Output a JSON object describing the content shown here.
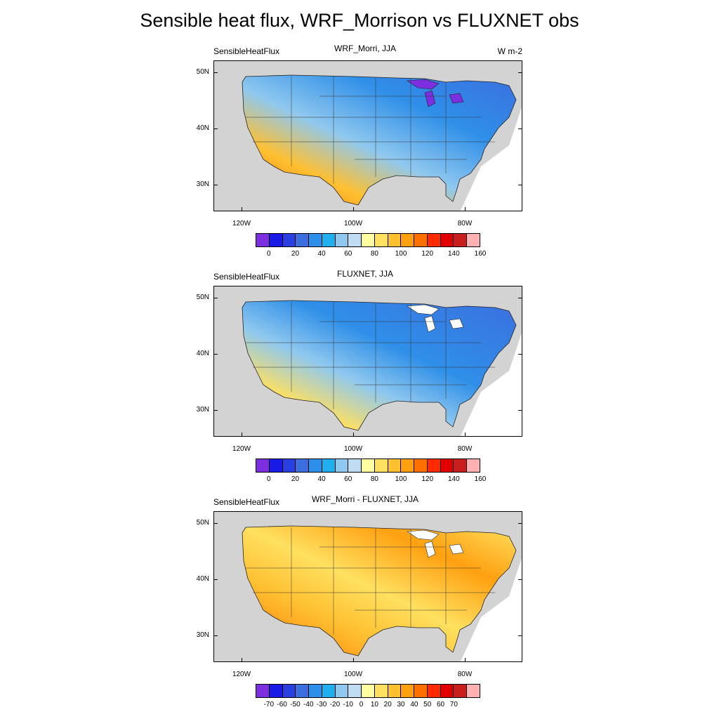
{
  "title": "Sensible heat flux, WRF_Morrison vs FLUXNET obs",
  "panels": [
    {
      "left_label": "SensibleHeatFlux",
      "center_label": "WRF_Morri, JJA",
      "right_label": "W m-2",
      "colorbar_labels": [
        "0",
        "20",
        "40",
        "60",
        "80",
        "100",
        "120",
        "140",
        "160"
      ],
      "colors": [
        "#7b2fe0",
        "#1a1ae6",
        "#2a3fe0",
        "#3b6fe0",
        "#2f8fe8",
        "#1fb0f0",
        "#8fc8ef",
        "#c0dcf2",
        "#ffffa0",
        "#ffe060",
        "#ffc030",
        "#ffa010",
        "#ff7000",
        "#ff2a00",
        "#e00000",
        "#c81e1e",
        "#ffb0b0"
      ]
    },
    {
      "left_label": "SensibleHeatFlux",
      "center_label": "FLUXNET, JJA",
      "right_label": "",
      "colorbar_labels": [
        "0",
        "20",
        "40",
        "60",
        "80",
        "100",
        "120",
        "140",
        "160"
      ],
      "colors": [
        "#7b2fe0",
        "#1a1ae6",
        "#2a3fe0",
        "#3b6fe0",
        "#2f8fe8",
        "#1fb0f0",
        "#8fc8ef",
        "#c0dcf2",
        "#ffffa0",
        "#ffe060",
        "#ffc030",
        "#ffa010",
        "#ff7000",
        "#ff2a00",
        "#e00000",
        "#c81e1e",
        "#ffb0b0"
      ]
    },
    {
      "left_label": "SensibleHeatFlux",
      "center_label": "WRF_Morri - FLUXNET, JJA",
      "right_label": "",
      "colorbar_labels": [
        "-70",
        "-60",
        "-50",
        "-40",
        "-30",
        "-20",
        "-10",
        "0",
        "10",
        "20",
        "30",
        "40",
        "50",
        "60",
        "70"
      ],
      "colors": [
        "#7b2fe0",
        "#1a1ae6",
        "#2a3fe0",
        "#3b6fe0",
        "#2f8fe8",
        "#1fb0f0",
        "#8fc8ef",
        "#c0dcf2",
        "#ffffa0",
        "#ffe060",
        "#ffc030",
        "#ffa010",
        "#ff7000",
        "#ff2a00",
        "#e00000",
        "#c81e1e",
        "#ffb0b0"
      ]
    }
  ],
  "axes": {
    "lat_labels": [
      "50N",
      "40N",
      "30N"
    ],
    "lon_labels": [
      "120W",
      "100W",
      "80W"
    ]
  }
}
